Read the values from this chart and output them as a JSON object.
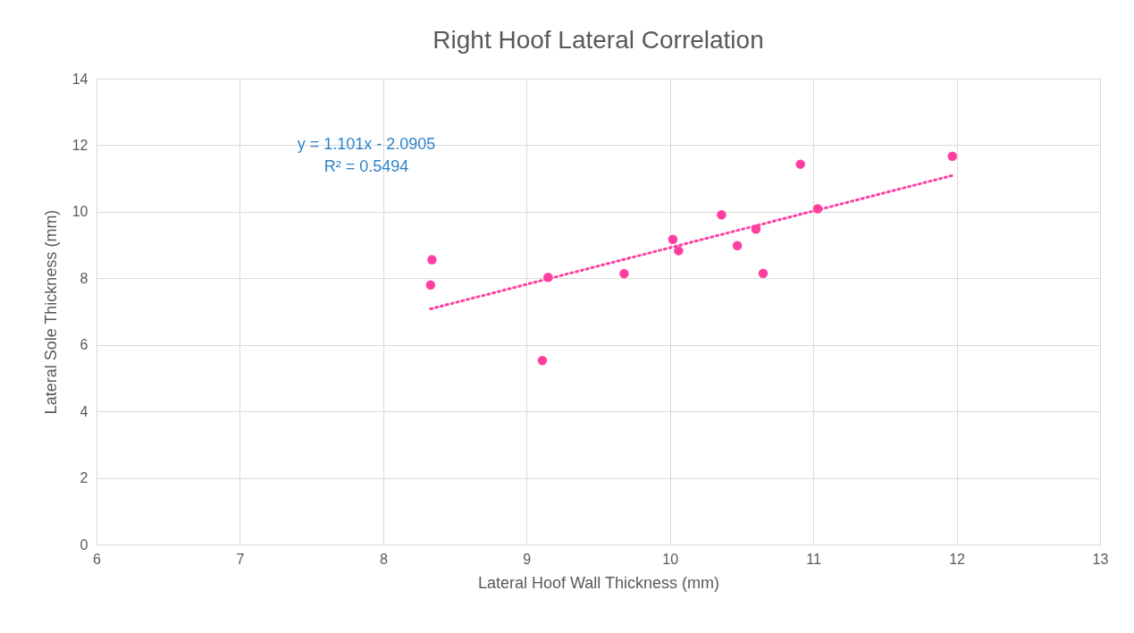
{
  "chart_data": {
    "type": "scatter",
    "title": "Right Hoof Lateral Correlation",
    "xlabel": "Lateral Hoof Wall Thickness (mm)",
    "ylabel": "Lateral Sole Thickness (mm)",
    "xlim": [
      6,
      13
    ],
    "xticks": [
      6,
      7,
      8,
      9,
      10,
      11,
      12,
      13
    ],
    "ylim": [
      0,
      14
    ],
    "yticks": [
      0,
      2,
      4,
      6,
      8,
      10,
      12,
      14
    ],
    "grid": true,
    "marker": "circle",
    "annotations": [
      "y = 1.101x - 2.0905",
      "R² = 0.5494"
    ],
    "series": [
      {
        "type": "scatter",
        "color": "#ff3fa0",
        "x": [
          8.34,
          8.33,
          9.15,
          9.11,
          9.68,
          10.02,
          10.06,
          10.36,
          10.47,
          10.6,
          10.65,
          10.91,
          11.03,
          11.97
        ],
        "values": [
          8.56,
          7.8,
          8.03,
          5.53,
          8.14,
          9.17,
          8.83,
          9.91,
          8.98,
          9.48,
          8.15,
          11.43,
          10.09,
          11.67
        ]
      },
      {
        "type": "line",
        "color": "#ff3fa0",
        "line_style": "dotted",
        "marker": "none",
        "x": [
          8.33,
          11.97
        ],
        "values": [
          7.08,
          11.09
        ]
      }
    ]
  }
}
